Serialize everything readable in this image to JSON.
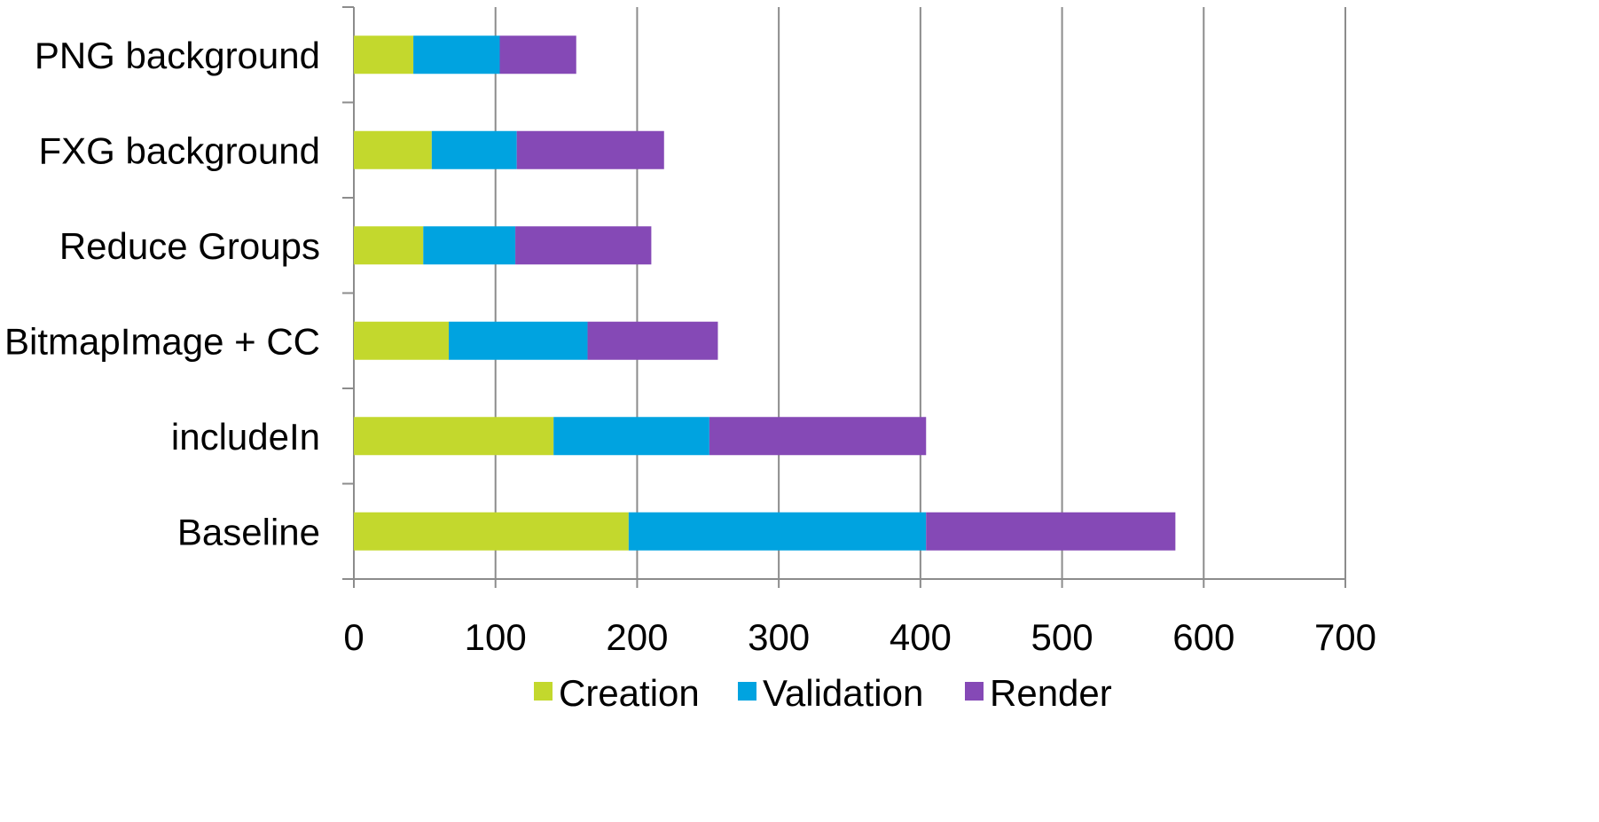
{
  "chart_data": {
    "type": "bar",
    "orientation": "horizontal",
    "stacked": true,
    "categories": [
      "Baseline",
      "includeIn",
      "BitmapImage + CC",
      "Reduce Groups",
      "FXG background",
      "PNG background"
    ],
    "series": [
      {
        "name": "Creation",
        "color": "#c3d82d",
        "values": [
          194,
          141,
          67,
          49,
          55,
          42
        ]
      },
      {
        "name": "Validation",
        "color": "#00a3e0",
        "values": [
          210,
          110,
          98,
          65,
          60,
          61
        ]
      },
      {
        "name": "Render",
        "color": "#8549b6",
        "values": [
          176,
          153,
          92,
          96,
          104,
          54
        ]
      }
    ],
    "x_ticks": [
      "0",
      "100",
      "200",
      "300",
      "400",
      "500",
      "600",
      "700"
    ],
    "xlim": [
      0,
      700
    ],
    "grid": "vertical major gridlines",
    "legend_position": "bottom",
    "title": "",
    "xlabel": "",
    "ylabel": ""
  }
}
